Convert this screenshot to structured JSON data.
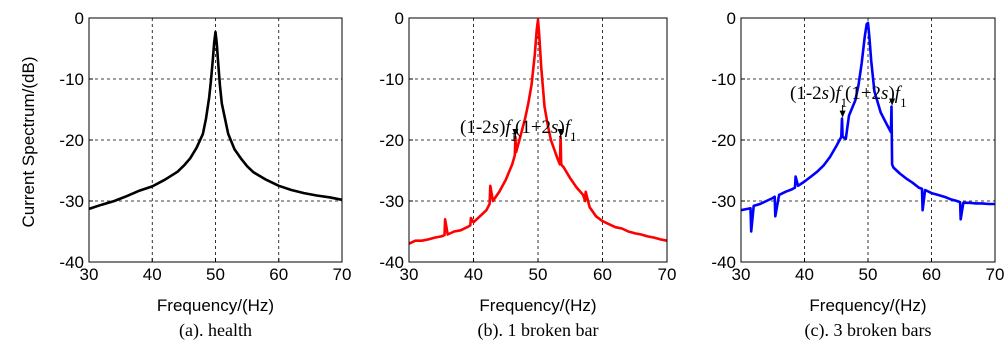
{
  "chart_data": [
    {
      "type": "line",
      "caption": "(a). health",
      "xlabel": "Frequency/(Hz)",
      "ylabel": "Current Spectrum/(dB)",
      "xlim": [
        30,
        70
      ],
      "ylim": [
        -40,
        0
      ],
      "xticks": [
        "30",
        "40",
        "50",
        "60",
        "70"
      ],
      "yticks": [
        "0",
        "-10",
        "-20",
        "-30",
        "-40"
      ],
      "grid": true,
      "series": [
        {
          "color": "#000000",
          "x": [
            30,
            32,
            34,
            36,
            38,
            40,
            42,
            44,
            45,
            46,
            47,
            48,
            48.5,
            49,
            49.3,
            49.6,
            49.8,
            50,
            50.2,
            50.4,
            50.7,
            51,
            51.5,
            52,
            53,
            54,
            55,
            56,
            58,
            60,
            62,
            64,
            66,
            68,
            70
          ],
          "y": [
            -31.3,
            -30.6,
            -30,
            -29.2,
            -28.3,
            -27.6,
            -26.5,
            -25.2,
            -24.2,
            -23,
            -21.3,
            -19,
            -16.5,
            -13,
            -10,
            -6.5,
            -4,
            -2.3,
            -4.2,
            -7,
            -11,
            -14,
            -16.5,
            -19,
            -21.5,
            -23,
            -24.3,
            -25.3,
            -26.5,
            -27.5,
            -28.2,
            -28.7,
            -29.1,
            -29.4,
            -29.8
          ]
        }
      ]
    },
    {
      "type": "line",
      "caption": "(b). 1 broken bar",
      "xlabel": "Frequency/(Hz)",
      "ylabel": "",
      "xlim": [
        30,
        70
      ],
      "ylim": [
        -40,
        0
      ],
      "xticks": [
        "30",
        "40",
        "50",
        "60",
        "70"
      ],
      "yticks": [
        "0",
        "-10",
        "-20",
        "-30",
        "-40"
      ],
      "grid": true,
      "annotations": [
        {
          "text": "(1-2s)f1",
          "x": 46.5,
          "y": -19.5
        },
        {
          "text": "(1+2s)f1",
          "x": 53.5,
          "y": -19.5
        }
      ],
      "series": [
        {
          "color": "#ff0000",
          "x": [
            30,
            31,
            32,
            33,
            34,
            35,
            35.5,
            35.6,
            36,
            37,
            38,
            39,
            39.5,
            39.6,
            40,
            41,
            42,
            42.5,
            42.6,
            43,
            44,
            45,
            46,
            46.4,
            46.5,
            46.6,
            47,
            48,
            48.5,
            49,
            49.5,
            49.8,
            50,
            50.2,
            50.5,
            51,
            51.5,
            52,
            53,
            53.4,
            53.5,
            53.6,
            54,
            55,
            56,
            57,
            57.3,
            57.4,
            58,
            59,
            60,
            61,
            62,
            63,
            64,
            65,
            66,
            67,
            68,
            69,
            70
          ],
          "y": [
            -37,
            -36.5,
            -36.5,
            -36.3,
            -36,
            -35.8,
            -35.6,
            -33,
            -35.5,
            -35,
            -34.8,
            -34.3,
            -34,
            -32.8,
            -33.5,
            -32.5,
            -31.5,
            -30.5,
            -27.5,
            -30,
            -28.5,
            -26.5,
            -24,
            -22.5,
            -19.5,
            -22,
            -20.5,
            -16.5,
            -14,
            -11,
            -6,
            -2,
            -0.3,
            -3,
            -8,
            -14.5,
            -17.5,
            -20,
            -23,
            -24,
            -19.5,
            -24,
            -24.5,
            -26.3,
            -27.8,
            -29,
            -30,
            -28.5,
            -31,
            -32.5,
            -33.3,
            -33.8,
            -34.3,
            -34.5,
            -35,
            -35.3,
            -35.5,
            -35.8,
            -36,
            -36.3,
            -36.5
          ]
        }
      ]
    },
    {
      "type": "line",
      "caption": "(c). 3 broken bars",
      "xlabel": "Frequency/(Hz)",
      "ylabel": "",
      "xlim": [
        30,
        70
      ],
      "ylim": [
        -40,
        0
      ],
      "xticks": [
        "30",
        "40",
        "50",
        "60",
        "70"
      ],
      "yticks": [
        "0",
        "-10",
        "-20",
        "-30",
        "-40"
      ],
      "grid": true,
      "annotations": [
        {
          "text": "(1-2s)f1",
          "x": 46,
          "y": -16.5
        },
        {
          "text": "(1+2s)f1",
          "x": 53.8,
          "y": -14.5
        }
      ],
      "series": [
        {
          "color": "#0000ff",
          "x": [
            30,
            31,
            31.5,
            31.6,
            32,
            33,
            34,
            35,
            35.3,
            35.4,
            36,
            37,
            38,
            38.5,
            38.6,
            39,
            40,
            41,
            42,
            43,
            44,
            45,
            45.8,
            45.9,
            46,
            46.5,
            47,
            48,
            48.5,
            49,
            49.5,
            49.8,
            50,
            50.2,
            50.5,
            51,
            52,
            53,
            53.6,
            53.7,
            53.8,
            54,
            55,
            56,
            57,
            58,
            58.5,
            58.6,
            59,
            60,
            61,
            62,
            63,
            64,
            64.5,
            64.6,
            65,
            66,
            67,
            68,
            69,
            70
          ],
          "y": [
            -31.5,
            -31.3,
            -31.2,
            -35,
            -30.8,
            -30.5,
            -30,
            -29.5,
            -29.3,
            -32.5,
            -29,
            -28.5,
            -28.1,
            -27.8,
            -26,
            -27.5,
            -26.8,
            -26,
            -25.2,
            -24.2,
            -22.8,
            -21,
            -19.5,
            -16.5,
            -19.5,
            -19.8,
            -16,
            -13.5,
            -11,
            -7.5,
            -3,
            -1,
            -0.8,
            -3,
            -7,
            -12,
            -15.5,
            -17.5,
            -18.7,
            -14.5,
            -24,
            -24.5,
            -25.5,
            -26.3,
            -27,
            -27.8,
            -28,
            -31.5,
            -28.2,
            -28.7,
            -29,
            -29.3,
            -29.7,
            -30,
            -30.2,
            -33,
            -30.3,
            -30.3,
            -30.4,
            -30.4,
            -30.5,
            -30.5
          ]
        }
      ]
    }
  ]
}
